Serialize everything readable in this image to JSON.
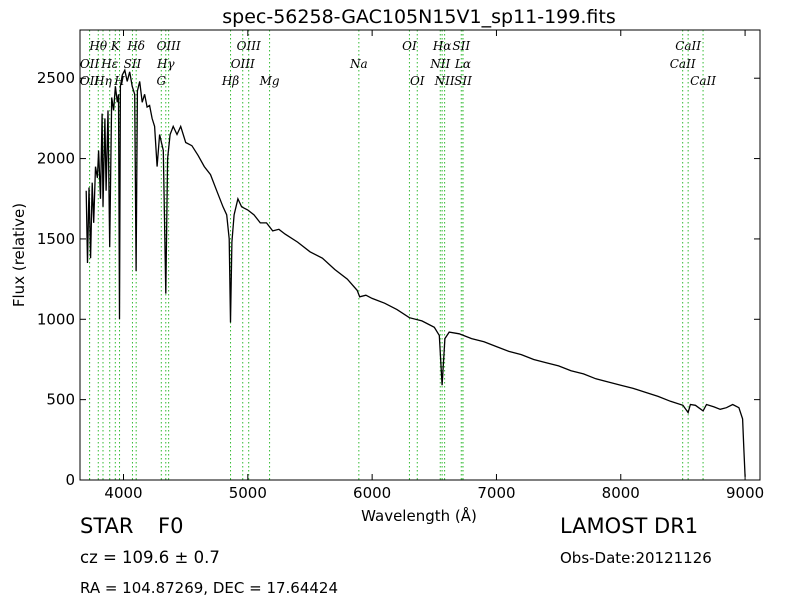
{
  "chart_data": {
    "type": "line",
    "title": "spec-56258-GAC105N15V1_sp11-199.fits",
    "xlabel": "Wavelength (Å)",
    "ylabel": "Flux (relative)",
    "xlim": [
      3650,
      9120
    ],
    "ylim": [
      0,
      2800
    ],
    "x_ticks": [
      4000,
      5000,
      6000,
      7000,
      8000,
      9000
    ],
    "y_ticks": [
      0,
      500,
      1000,
      1500,
      2000,
      2500
    ],
    "grid": false,
    "line_color": "#000000",
    "marker_color": "#33bb33",
    "series": [
      {
        "points": [
          [
            3700,
            1800
          ],
          [
            3710,
            1350
          ],
          [
            3722,
            1820
          ],
          [
            3735,
            1380
          ],
          [
            3748,
            1850
          ],
          [
            3760,
            1600
          ],
          [
            3775,
            1950
          ],
          [
            3790,
            1880
          ],
          [
            3800,
            2050
          ],
          [
            3815,
            1750
          ],
          [
            3828,
            2280
          ],
          [
            3835,
            1700
          ],
          [
            3850,
            2250
          ],
          [
            3860,
            1800
          ],
          [
            3875,
            2300
          ],
          [
            3889,
            1450
          ],
          [
            3905,
            2380
          ],
          [
            3920,
            2300
          ],
          [
            3935,
            2450
          ],
          [
            3950,
            2350
          ],
          [
            3960,
            2400
          ],
          [
            3968,
            1000
          ],
          [
            3975,
            2450
          ],
          [
            3990,
            2520
          ],
          [
            4010,
            2550
          ],
          [
            4030,
            2480
          ],
          [
            4050,
            2540
          ],
          [
            4070,
            2450
          ],
          [
            4090,
            2400
          ],
          [
            4101,
            1300
          ],
          [
            4112,
            2420
          ],
          [
            4130,
            2480
          ],
          [
            4150,
            2350
          ],
          [
            4170,
            2400
          ],
          [
            4190,
            2320
          ],
          [
            4210,
            2330
          ],
          [
            4230,
            2250
          ],
          [
            4250,
            2200
          ],
          [
            4270,
            1950
          ],
          [
            4290,
            2150
          ],
          [
            4320,
            2050
          ],
          [
            4340,
            1160
          ],
          [
            4355,
            2000
          ],
          [
            4375,
            2150
          ],
          [
            4400,
            2200
          ],
          [
            4430,
            2150
          ],
          [
            4460,
            2200
          ],
          [
            4500,
            2100
          ],
          [
            4550,
            2080
          ],
          [
            4600,
            2020
          ],
          [
            4650,
            1950
          ],
          [
            4700,
            1900
          ],
          [
            4750,
            1800
          ],
          [
            4800,
            1700
          ],
          [
            4830,
            1650
          ],
          [
            4850,
            1500
          ],
          [
            4861,
            980
          ],
          [
            4872,
            1480
          ],
          [
            4890,
            1650
          ],
          [
            4920,
            1750
          ],
          [
            4950,
            1700
          ],
          [
            5000,
            1680
          ],
          [
            5050,
            1650
          ],
          [
            5100,
            1600
          ],
          [
            5150,
            1600
          ],
          [
            5200,
            1550
          ],
          [
            5250,
            1560
          ],
          [
            5300,
            1530
          ],
          [
            5400,
            1480
          ],
          [
            5500,
            1420
          ],
          [
            5600,
            1380
          ],
          [
            5700,
            1310
          ],
          [
            5800,
            1250
          ],
          [
            5880,
            1180
          ],
          [
            5900,
            1140
          ],
          [
            5950,
            1150
          ],
          [
            6000,
            1130
          ],
          [
            6100,
            1100
          ],
          [
            6200,
            1060
          ],
          [
            6300,
            1010
          ],
          [
            6400,
            990
          ],
          [
            6500,
            950
          ],
          [
            6540,
            900
          ],
          [
            6563,
            590
          ],
          [
            6585,
            880
          ],
          [
            6620,
            920
          ],
          [
            6700,
            910
          ],
          [
            6800,
            880
          ],
          [
            6900,
            860
          ],
          [
            7000,
            830
          ],
          [
            7100,
            800
          ],
          [
            7200,
            780
          ],
          [
            7300,
            750
          ],
          [
            7400,
            730
          ],
          [
            7500,
            710
          ],
          [
            7600,
            680
          ],
          [
            7700,
            660
          ],
          [
            7800,
            630
          ],
          [
            7900,
            610
          ],
          [
            8000,
            590
          ],
          [
            8100,
            570
          ],
          [
            8200,
            545
          ],
          [
            8300,
            520
          ],
          [
            8400,
            490
          ],
          [
            8500,
            465
          ],
          [
            8542,
            420
          ],
          [
            8560,
            470
          ],
          [
            8600,
            465
          ],
          [
            8662,
            430
          ],
          [
            8690,
            470
          ],
          [
            8750,
            455
          ],
          [
            8800,
            440
          ],
          [
            8850,
            450
          ],
          [
            8900,
            470
          ],
          [
            8950,
            450
          ],
          [
            8980,
            380
          ],
          [
            8990,
            200
          ],
          [
            9000,
            20
          ]
        ]
      }
    ],
    "lines": [
      {
        "row": 1,
        "label": "Hθ",
        "wl": 3797
      },
      {
        "row": 1,
        "label": "K",
        "wl": 3934
      },
      {
        "row": 1,
        "label": "Hδ",
        "wl": 4102
      },
      {
        "row": 1,
        "label": "OIII",
        "wl": 4363
      },
      {
        "row": 1,
        "label": "OIII",
        "wl": 5007
      },
      {
        "row": 1,
        "label": "OI",
        "wl": 6300
      },
      {
        "row": 1,
        "label": "Hα",
        "wl": 6563
      },
      {
        "row": 1,
        "label": "SII",
        "wl": 6717
      },
      {
        "row": 1,
        "label": "CaII",
        "wl": 8542
      },
      {
        "row": 2,
        "label": "OII",
        "wl": 3727
      },
      {
        "row": 2,
        "label": "Hε",
        "wl": 3889
      },
      {
        "row": 2,
        "label": "SII",
        "wl": 4072
      },
      {
        "row": 2,
        "label": "Hγ",
        "wl": 4340
      },
      {
        "row": 2,
        "label": "OIII",
        "wl": 4959
      },
      {
        "row": 2,
        "label": "Na",
        "wl": 5893
      },
      {
        "row": 2,
        "label": "NII",
        "wl": 6548
      },
      {
        "row": 2,
        "label": "Lα",
        "wl": 6730
      },
      {
        "row": 2,
        "label": "CaII",
        "wl": 8498
      },
      {
        "row": 3,
        "label": "OII",
        "wl": 3727
      },
      {
        "row": 3,
        "label": "Hη",
        "wl": 3835
      },
      {
        "row": 3,
        "label": "H",
        "wl": 3968
      },
      {
        "row": 3,
        "label": "G",
        "wl": 4304
      },
      {
        "row": 3,
        "label": "Hβ",
        "wl": 4861
      },
      {
        "row": 3,
        "label": "Mg",
        "wl": 5175
      },
      {
        "row": 3,
        "label": "OI",
        "wl": 6363
      },
      {
        "row": 3,
        "label": "NII",
        "wl": 6583
      },
      {
        "row": 3,
        "label": "SII",
        "wl": 6731
      },
      {
        "row": 3,
        "label": "CaII",
        "wl": 8662
      }
    ]
  },
  "info": {
    "class_label": "STAR",
    "subclass": "F0",
    "survey": "LAMOST DR1",
    "cz": "cz = 109.6 ± 0.7",
    "obs_date": "Obs-Date:20121126",
    "radec": "RA = 104.87269, DEC = 17.64424"
  }
}
